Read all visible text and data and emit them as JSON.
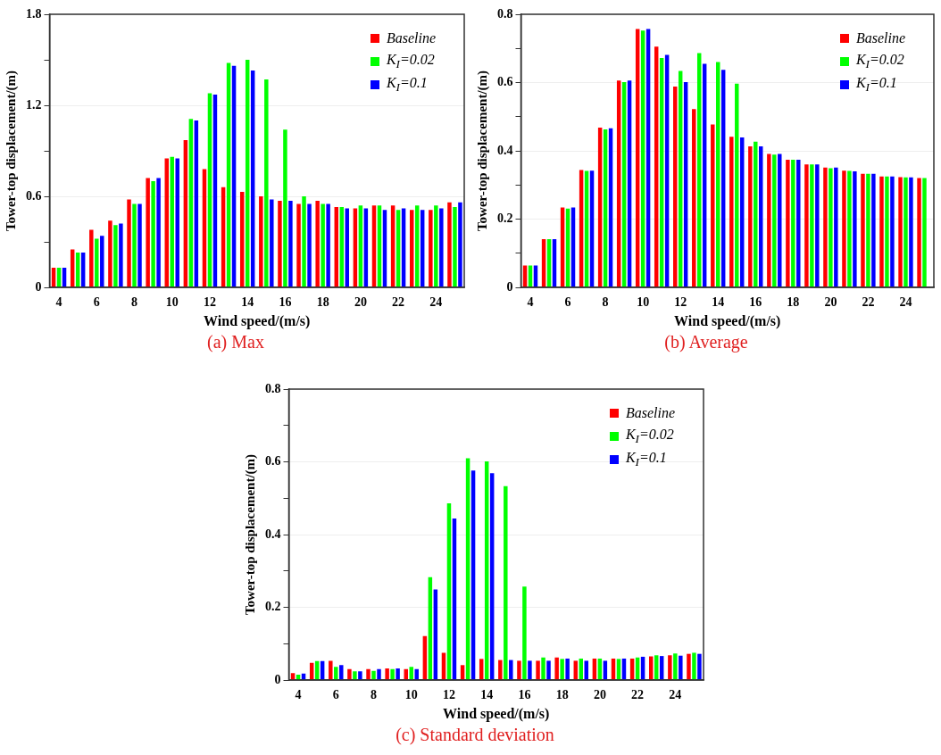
{
  "chart_data": [
    {
      "type": "bar",
      "title": "(a) Max",
      "xlabel": "Wind speed/(m/s)",
      "ylabel": "Tower-top displacement/(m)",
      "categories": [
        "4",
        null,
        "6",
        null,
        "8",
        null,
        "10",
        null,
        "12",
        null,
        "14",
        null,
        "16",
        null,
        "18",
        null,
        "20",
        null,
        "22",
        null,
        "24",
        null
      ],
      "ylim": [
        0,
        1.8
      ],
      "yticks": [
        0,
        {
          "value": 0.3,
          "label": null
        },
        0.6,
        {
          "value": 0.9,
          "label": null
        },
        1.2,
        {
          "value": 1.5,
          "label": null
        },
        1.8
      ],
      "grid": "y",
      "legend": "top right",
      "series": [
        {
          "name": "Baseline",
          "color": "#ff0000",
          "values": [
            0.13,
            0.25,
            0.38,
            0.44,
            0.58,
            0.72,
            0.85,
            0.97,
            0.78,
            0.66,
            0.63,
            0.6,
            0.57,
            0.55,
            0.57,
            0.53,
            0.52,
            0.54,
            0.54,
            0.51,
            0.51,
            0.56
          ]
        },
        {
          "name": "K$_{I}$=0.02",
          "color": "#00ff00",
          "values": [
            0.13,
            0.23,
            0.32,
            0.41,
            0.55,
            0.7,
            0.86,
            1.11,
            1.28,
            1.48,
            1.5,
            1.37,
            1.04,
            0.6,
            0.55,
            0.53,
            0.54,
            0.54,
            0.51,
            0.54,
            0.54,
            0.53
          ]
        },
        {
          "name": "K$_{I}$=0.1",
          "color": "#0000ff",
          "values": [
            0.13,
            0.23,
            0.34,
            0.42,
            0.55,
            0.72,
            0.85,
            1.1,
            1.27,
            1.46,
            1.43,
            0.58,
            0.57,
            0.55,
            0.55,
            0.52,
            0.52,
            0.51,
            0.52,
            0.51,
            0.52,
            0.56
          ]
        }
      ]
    },
    {
      "type": "bar",
      "title": "(b) Average",
      "xlabel": "Wind speed/(m/s)",
      "ylabel": "Tower-top displacement/(m)",
      "categories": [
        "4",
        null,
        "6",
        null,
        "8",
        null,
        "10",
        null,
        "12",
        null,
        "14",
        null,
        "16",
        null,
        "18",
        null,
        "20",
        null,
        "22",
        null,
        "24",
        null
      ],
      "ylim": [
        0,
        0.8
      ],
      "yticks": [
        0,
        {
          "value": 0.1,
          "label": null
        },
        0.2,
        {
          "value": 0.3,
          "label": null
        },
        0.4,
        {
          "value": 0.5,
          "label": null
        },
        0.6,
        {
          "value": 0.7,
          "label": null
        },
        0.8
      ],
      "grid": "y",
      "legend": "top right",
      "series": [
        {
          "name": "Baseline",
          "color": "#ff0000",
          "values": [
            0.064,
            0.141,
            0.234,
            0.344,
            0.468,
            0.606,
            0.757,
            0.705,
            0.588,
            0.522,
            0.477,
            0.441,
            0.413,
            0.391,
            0.374,
            0.36,
            0.351,
            0.342,
            0.333,
            0.325,
            0.323,
            0.32
          ]
        },
        {
          "name": "K$_{I}$=0.02",
          "color": "#00ff00",
          "values": [
            0.064,
            0.141,
            0.231,
            0.341,
            0.463,
            0.601,
            0.752,
            0.672,
            0.634,
            0.686,
            0.66,
            0.597,
            0.427,
            0.389,
            0.374,
            0.36,
            0.349,
            0.341,
            0.333,
            0.325,
            0.322,
            0.32
          ]
        },
        {
          "name": "K$_{I}$=0.1",
          "color": "#0000ff",
          "values": [
            0.064,
            0.141,
            0.234,
            0.342,
            0.466,
            0.606,
            0.757,
            0.681,
            0.601,
            0.655,
            0.637,
            0.439,
            0.413,
            0.391,
            0.374,
            0.36,
            0.351,
            0.34,
            0.333,
            0.325,
            0.322,
            null
          ]
        }
      ]
    },
    {
      "type": "bar",
      "title": "(c) Standard deviation",
      "xlabel": "Wind speed/(m/s)",
      "ylabel": "Tower-top displacement/(m)",
      "categories": [
        "4",
        null,
        "6",
        null,
        "8",
        null,
        "10",
        null,
        "12",
        null,
        "14",
        null,
        "16",
        null,
        "18",
        null,
        "20",
        null,
        "22",
        null,
        "24",
        null
      ],
      "ylim": [
        0,
        0.8
      ],
      "yticks": [
        0,
        {
          "value": 0.1,
          "label": null
        },
        0.2,
        {
          "value": 0.3,
          "label": null
        },
        0.4,
        {
          "value": 0.5,
          "label": null
        },
        0.6,
        {
          "value": 0.7,
          "label": null
        },
        0.8
      ],
      "grid": "y",
      "legend": "top right",
      "series": [
        {
          "name": "Baseline",
          "color": "#ff0000",
          "values": [
            0.019,
            0.047,
            0.053,
            0.03,
            0.03,
            0.032,
            0.03,
            0.121,
            0.075,
            0.041,
            0.058,
            0.055,
            0.053,
            0.053,
            0.062,
            0.053,
            0.059,
            0.059,
            0.059,
            0.065,
            0.068,
            0.072
          ]
        },
        {
          "name": "K$_{I}$=0.02",
          "color": "#00ff00",
          "values": [
            0.015,
            0.052,
            0.036,
            0.024,
            0.025,
            0.03,
            0.036,
            0.283,
            0.486,
            0.61,
            0.601,
            0.533,
            0.257,
            0.062,
            0.058,
            0.059,
            0.059,
            0.058,
            0.062,
            0.068,
            0.073,
            0.075
          ]
        },
        {
          "name": "K$_{I}$=0.1",
          "color": "#0000ff",
          "values": [
            0.018,
            0.052,
            0.041,
            0.024,
            0.03,
            0.032,
            0.03,
            0.249,
            0.444,
            0.576,
            0.569,
            0.055,
            0.053,
            0.053,
            0.059,
            0.053,
            0.053,
            0.059,
            0.064,
            0.066,
            0.067,
            0.072
          ]
        }
      ]
    }
  ]
}
